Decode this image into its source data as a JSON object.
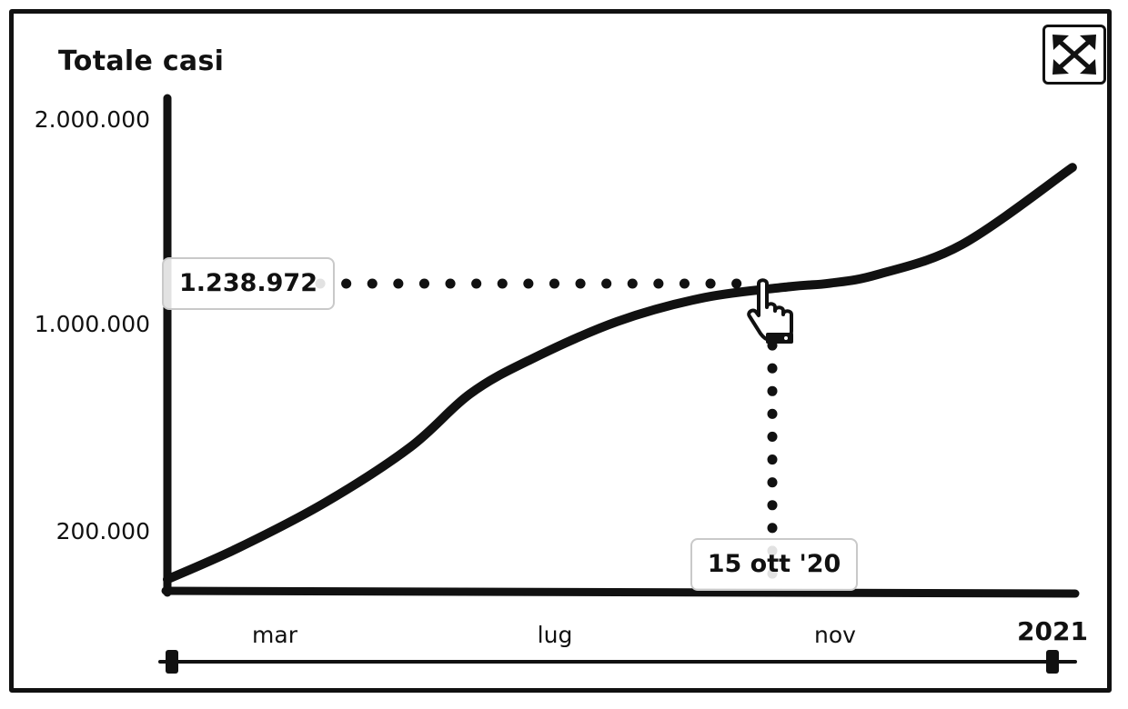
{
  "chart_data": {
    "type": "line",
    "title": "Totale casi",
    "xlabel": "",
    "ylabel": "",
    "y_ticks": [
      {
        "label": "2.000.000",
        "value": 2000000
      },
      {
        "label": "1.000.000",
        "value": 1000000
      },
      {
        "label": "200.000",
        "value": 200000
      }
    ],
    "x_ticks": [
      {
        "label": "mar",
        "date": "2020-03-01"
      },
      {
        "label": "lug",
        "date": "2020-07-01"
      },
      {
        "label": "nov",
        "date": "2020-11-01"
      },
      {
        "label": "2021",
        "date": "2021-01-01"
      }
    ],
    "ylim": [
      0,
      2000000
    ],
    "xlim": [
      "2020-02-24",
      "2021-01-10"
    ],
    "series": [
      {
        "points": [
          {
            "date": "2020-02-24",
            "y": 10000
          },
          {
            "date": "2020-03-20",
            "y": 140000
          },
          {
            "date": "2020-04-20",
            "y": 330000
          },
          {
            "date": "2020-05-20",
            "y": 560000
          },
          {
            "date": "2020-06-10",
            "y": 780000
          },
          {
            "date": "2020-07-01",
            "y": 920000
          },
          {
            "date": "2020-08-01",
            "y": 1080000
          },
          {
            "date": "2020-09-01",
            "y": 1180000
          },
          {
            "date": "2020-10-01",
            "y": 1225000
          },
          {
            "date": "2020-10-15",
            "y": 1238972
          },
          {
            "date": "2020-11-01",
            "y": 1275000
          },
          {
            "date": "2020-12-01",
            "y": 1400000
          },
          {
            "date": "2021-01-09",
            "y": 1720000
          }
        ]
      }
    ],
    "highlight": {
      "date": "2020-10-15",
      "y": 1238972,
      "value_label": "1.238.972",
      "date_label": "15 ott '20"
    },
    "grid": false,
    "legend": "none"
  },
  "controls": {
    "expand_icon": "expand-arrows-icon",
    "cursor_icon": "pointing-hand-icon"
  },
  "colors": {
    "line": "#111111",
    "label_border": "#c9c9c9"
  }
}
